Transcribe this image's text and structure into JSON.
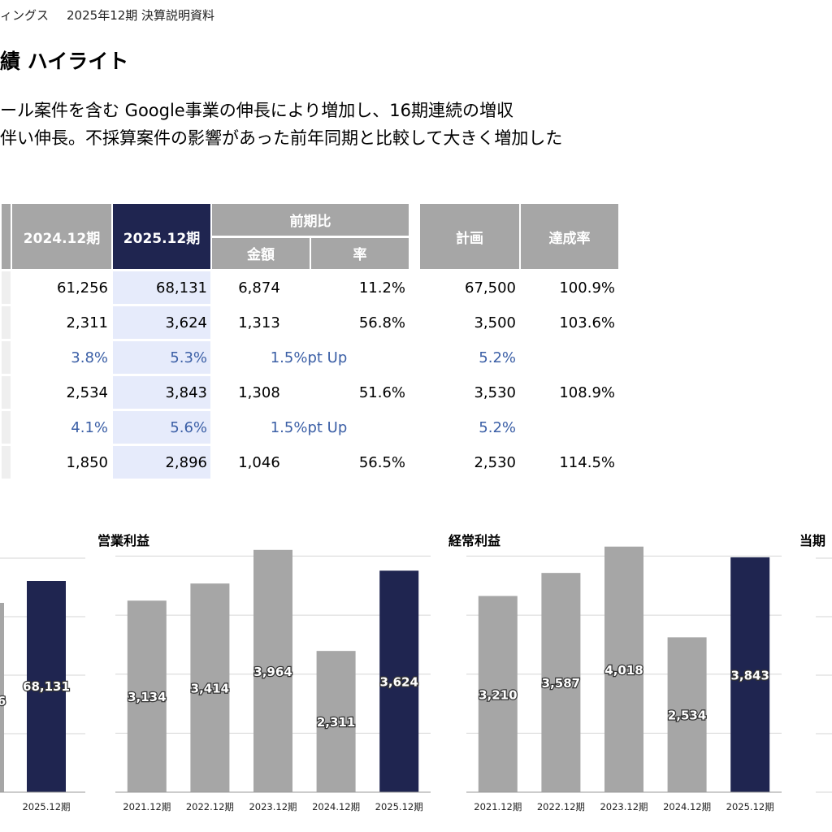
{
  "header": {
    "company_fragment": "ィングス",
    "doc_title": "2025年12期 決算説明資料"
  },
  "title": "績 ハイライト",
  "bullets": [
    "ール案件を含む Google事業の伸長により増加し、16期連続の増収",
    "伴い伸長。不採算案件の影響があった前年同期と比較して大きく増加した"
  ],
  "table": {
    "headers": {
      "prev": "2024.12期",
      "cur": "2025.12期",
      "yoy": "前期比",
      "yoy_amount": "金額",
      "yoy_rate": "率",
      "plan": "計画",
      "achievement": "達成率"
    },
    "rows": [
      {
        "prev": "61,256",
        "cur": "68,131",
        "amount": "6,874",
        "rate": "11.2%",
        "plan": "67,500",
        "achv": "100.9%"
      },
      {
        "prev": "2,311",
        "cur": "3,624",
        "amount": "1,313",
        "rate": "56.8%",
        "plan": "3,500",
        "achv": "103.6%"
      },
      {
        "prev": "3.8%",
        "cur": "5.3%",
        "amount": "1.5%pt Up",
        "rate": "",
        "plan": "5.2%",
        "achv": "",
        "ratio": true
      },
      {
        "prev": "2,534",
        "cur": "3,843",
        "amount": "1,308",
        "rate": "51.6%",
        "plan": "3,530",
        "achv": "108.9%"
      },
      {
        "prev": "4.1%",
        "cur": "5.6%",
        "amount": "1.5%pt Up",
        "rate": "",
        "plan": "5.2%",
        "achv": "",
        "ratio": true
      },
      {
        "prev": "1,850",
        "cur": "2,896",
        "amount": "1,046",
        "rate": "56.5%",
        "plan": "2,530",
        "achv": "114.5%"
      }
    ]
  },
  "colors": {
    "highlight": "#1f2550",
    "neutral": "#a6a6a6",
    "highlight_bg": "#e6ebfb",
    "ratio_text": "#3b5fa6"
  },
  "chart_data": [
    {
      "type": "bar",
      "title": "",
      "categories": [
        "",
        "2025.12期"
      ],
      "values": [
        null,
        68131
      ],
      "value_labels": [
        "6",
        "68,131"
      ],
      "highlight_index": 1,
      "partial": true
    },
    {
      "type": "bar",
      "title": "営業利益",
      "categories": [
        "2021.12期",
        "2022.12期",
        "2023.12期",
        "2024.12期",
        "2025.12期"
      ],
      "values": [
        3134,
        3414,
        3964,
        2311,
        3624
      ],
      "value_labels": [
        "3,134",
        "3,414",
        "3,964",
        "2,311",
        "3,624"
      ],
      "highlight_index": 4,
      "ylim": [
        0,
        4000
      ],
      "grid": true
    },
    {
      "type": "bar",
      "title": "経常利益",
      "categories": [
        "2021.12期",
        "2022.12期",
        "2023.12期",
        "2024.12期",
        "2025.12期"
      ],
      "values": [
        3210,
        3587,
        4018,
        2534,
        3843
      ],
      "value_labels": [
        "3,210",
        "3,587",
        "4,018",
        "2,534",
        "3,843"
      ],
      "highlight_index": 4,
      "ylim": [
        0,
        4000
      ],
      "grid": true
    },
    {
      "type": "bar",
      "title": "当期",
      "categories": [],
      "values": [],
      "partial": true
    }
  ]
}
